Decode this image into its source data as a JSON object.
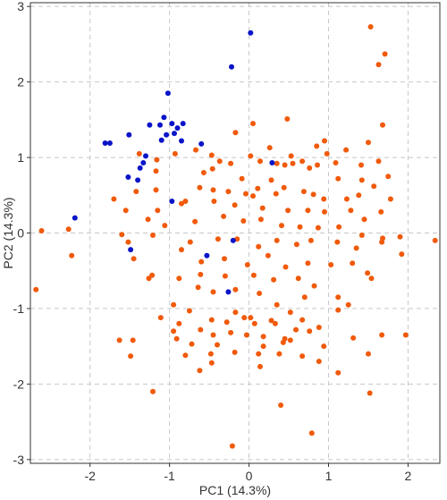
{
  "chart_data": {
    "type": "scatter",
    "title": "",
    "xlabel": "PC1 (14.3%)",
    "ylabel": "PC2 (14.3%)",
    "xlim": [
      -2.75,
      2.4
    ],
    "ylim": [
      -3.05,
      3.05
    ],
    "xticks": [
      -2,
      -1,
      0,
      1,
      2
    ],
    "yticks": [
      -3,
      -2,
      -1,
      0,
      1,
      2,
      3
    ],
    "grid": true,
    "legend": "none",
    "series": [
      {
        "color": "#0a14c8",
        "points": [
          [
            0.02,
            2.65
          ],
          [
            -0.22,
            2.2
          ],
          [
            -1.02,
            1.85
          ],
          [
            -1.07,
            1.53
          ],
          [
            -1.12,
            1.43
          ],
          [
            -0.97,
            1.45
          ],
          [
            -0.9,
            1.39
          ],
          [
            -0.83,
            1.45
          ],
          [
            -0.94,
            1.32
          ],
          [
            -1.25,
            1.43
          ],
          [
            -1.51,
            1.3
          ],
          [
            -1.75,
            1.19
          ],
          [
            -1.81,
            1.19
          ],
          [
            -1.1,
            1.23
          ],
          [
            -0.85,
            1.22
          ],
          [
            -0.6,
            1.18
          ],
          [
            -1.04,
            1.3
          ],
          [
            -1.3,
            1.02
          ],
          [
            -1.33,
            0.93
          ],
          [
            -1.37,
            0.86
          ],
          [
            -1.52,
            0.74
          ],
          [
            -1.4,
            0.7
          ],
          [
            -0.97,
            0.42
          ],
          [
            -2.19,
            0.2
          ],
          [
            -1.49,
            -0.22
          ],
          [
            0.29,
            0.93
          ],
          [
            -0.2,
            -0.1
          ],
          [
            -0.53,
            -0.3
          ],
          [
            -0.26,
            -0.78
          ]
        ]
      },
      {
        "color": "#f05a0a",
        "points": [
          [
            1.53,
            2.73
          ],
          [
            1.63,
            2.23
          ],
          [
            1.71,
            2.37
          ],
          [
            1.68,
            1.43
          ],
          [
            0.48,
            1.51
          ],
          [
            0.05,
            1.45
          ],
          [
            0.95,
            1.22
          ],
          [
            -0.17,
            1.33
          ],
          [
            0.26,
            1.13
          ],
          [
            0.53,
            1.02
          ],
          [
            0.85,
            1.15
          ],
          [
            0.98,
            1.05
          ],
          [
            1.22,
            1.1
          ],
          [
            1.5,
            1.2
          ],
          [
            0.02,
            1.02
          ],
          [
            -0.47,
            1.03
          ],
          [
            -0.67,
            1.1
          ],
          [
            -0.93,
            1.05
          ],
          [
            -1.16,
            0.97
          ],
          [
            -1.38,
            1.05
          ],
          [
            -1.17,
            0.82
          ],
          [
            -0.37,
            0.95
          ],
          [
            -0.23,
            0.92
          ],
          [
            -0.46,
            0.85
          ],
          [
            -0.57,
            0.8
          ],
          [
            0.14,
            0.95
          ],
          [
            0.35,
            0.92
          ],
          [
            0.45,
            0.9
          ],
          [
            0.55,
            0.92
          ],
          [
            0.67,
            0.95
          ],
          [
            0.76,
            0.86
          ],
          [
            0.86,
            0.9
          ],
          [
            1.09,
            0.93
          ],
          [
            1.41,
            0.9
          ],
          [
            1.63,
            0.95
          ],
          [
            1.75,
            0.75
          ],
          [
            1.12,
            0.72
          ],
          [
            1.42,
            0.7
          ],
          [
            1.57,
            0.62
          ],
          [
            1.38,
            0.5
          ],
          [
            1.78,
            0.45
          ],
          [
            1.23,
            0.45
          ],
          [
            0.81,
            0.51
          ],
          [
            0.94,
            0.45
          ],
          [
            0.69,
            0.55
          ],
          [
            0.44,
            0.6
          ],
          [
            0.28,
            0.7
          ],
          [
            0.11,
            0.59
          ],
          [
            -0.09,
            0.72
          ],
          [
            0.34,
            0.52
          ],
          [
            0.05,
            0.49
          ],
          [
            -0.04,
            0.52
          ],
          [
            -0.26,
            0.55
          ],
          [
            -0.45,
            0.57
          ],
          [
            -0.62,
            0.6
          ],
          [
            -0.8,
            0.42
          ],
          [
            -1.17,
            0.57
          ],
          [
            -1.42,
            0.55
          ],
          [
            -1.55,
            0.3
          ],
          [
            -1.7,
            0.45
          ],
          [
            -1.15,
            0.3
          ],
          [
            -0.85,
            0.39
          ],
          [
            -0.44,
            0.42
          ],
          [
            -0.18,
            0.37
          ],
          [
            0.17,
            0.33
          ],
          [
            0.49,
            0.3
          ],
          [
            0.74,
            0.3
          ],
          [
            0.95,
            0.28
          ],
          [
            1.28,
            0.3
          ],
          [
            1.45,
            0.18
          ],
          [
            1.66,
            0.28
          ],
          [
            -1.27,
            0.18
          ],
          [
            -1.06,
            0.1
          ],
          [
            -0.68,
            0.15
          ],
          [
            -0.32,
            0.22
          ],
          [
            -0.07,
            0.16
          ],
          [
            0.15,
            0.18
          ],
          [
            0.41,
            0.1
          ],
          [
            0.64,
            0.08
          ],
          [
            0.87,
            0.07
          ],
          [
            1.13,
            0.08
          ],
          [
            1.42,
            -0.03
          ],
          [
            1.68,
            -0.07
          ],
          [
            1.9,
            -0.05
          ],
          [
            2.34,
            -0.1
          ],
          [
            -1.6,
            -0.02
          ],
          [
            -1.52,
            -0.12
          ],
          [
            -1.21,
            -0.03
          ],
          [
            -0.74,
            -0.12
          ],
          [
            -0.39,
            -0.08
          ],
          [
            -0.15,
            -0.08
          ],
          [
            0.12,
            -0.18
          ],
          [
            0.35,
            -0.1
          ],
          [
            0.6,
            -0.15
          ],
          [
            0.78,
            -0.1
          ],
          [
            1.11,
            -0.12
          ],
          [
            1.35,
            -0.2
          ],
          [
            1.67,
            -0.12
          ],
          [
            1.92,
            -0.28
          ],
          [
            -2.61,
            0.03
          ],
          [
            -2.27,
            0.05
          ],
          [
            -2.23,
            -0.3
          ],
          [
            -1.45,
            -0.34
          ],
          [
            -1.26,
            -0.6
          ],
          [
            -0.85,
            -0.22
          ],
          [
            -0.6,
            -0.38
          ],
          [
            -0.31,
            -0.34
          ],
          [
            -0.02,
            -0.42
          ],
          [
            0.24,
            -0.3
          ],
          [
            0.46,
            -0.45
          ],
          [
            0.74,
            -0.4
          ],
          [
            1.03,
            -0.42
          ],
          [
            1.3,
            -0.4
          ],
          [
            1.49,
            -0.53
          ],
          [
            1.54,
            -0.6
          ],
          [
            -1.22,
            -0.56
          ],
          [
            -0.88,
            -0.6
          ],
          [
            -0.61,
            -0.55
          ],
          [
            -0.3,
            -0.57
          ],
          [
            0.06,
            -0.56
          ],
          [
            0.31,
            -0.62
          ],
          [
            0.62,
            -0.6
          ],
          [
            0.82,
            -0.7
          ],
          [
            -2.68,
            -0.75
          ],
          [
            -0.64,
            -0.72
          ],
          [
            -0.45,
            -0.78
          ],
          [
            -0.17,
            -0.75
          ],
          [
            0.13,
            -0.8
          ],
          [
            0.35,
            -0.95
          ],
          [
            0.7,
            -0.85
          ],
          [
            1.12,
            -0.85
          ],
          [
            1.25,
            -0.95
          ],
          [
            -0.95,
            -0.95
          ],
          [
            -0.75,
            -1.03
          ],
          [
            -0.17,
            -1.05
          ],
          [
            -0.06,
            -1.12
          ],
          [
            0.02,
            -1.12
          ],
          [
            0.28,
            -1.16
          ],
          [
            0.52,
            -1.05
          ],
          [
            0.67,
            -1.15
          ],
          [
            1.12,
            -1.02
          ],
          [
            -1.11,
            -1.12
          ],
          [
            -0.88,
            -1.2
          ],
          [
            -0.47,
            -1.15
          ],
          [
            -0.28,
            -1.18
          ],
          [
            0.07,
            -1.2
          ],
          [
            0.33,
            -1.2
          ],
          [
            0.59,
            -1.28
          ],
          [
            0.88,
            -1.25
          ],
          [
            -0.95,
            -1.3
          ],
          [
            -0.61,
            -1.28
          ],
          [
            -0.45,
            -1.35
          ],
          [
            -0.23,
            -1.32
          ],
          [
            -0.03,
            -1.35
          ],
          [
            0.18,
            -1.37
          ],
          [
            0.45,
            -1.4
          ],
          [
            0.76,
            -1.3
          ],
          [
            1.31,
            -1.39
          ],
          [
            1.67,
            -1.35
          ],
          [
            -1.63,
            -1.42
          ],
          [
            -1.46,
            -1.42
          ],
          [
            -0.91,
            -1.4
          ],
          [
            -0.72,
            -1.47
          ],
          [
            -0.4,
            -1.48
          ],
          [
            0.18,
            -1.5
          ],
          [
            0.43,
            -1.45
          ],
          [
            0.52,
            -1.42
          ],
          [
            0.94,
            -1.5
          ],
          [
            1.97,
            -1.35
          ],
          [
            -1.49,
            -1.63
          ],
          [
            -0.8,
            -1.62
          ],
          [
            -0.48,
            -1.6
          ],
          [
            -0.18,
            -1.58
          ],
          [
            0.12,
            -1.6
          ],
          [
            0.38,
            -1.6
          ],
          [
            0.67,
            -1.63
          ],
          [
            1.5,
            -1.6
          ],
          [
            -0.47,
            -1.72
          ],
          [
            0.14,
            -1.77
          ],
          [
            0.88,
            -1.7
          ],
          [
            -0.62,
            -1.82
          ],
          [
            1.12,
            -1.85
          ],
          [
            -1.21,
            -2.1
          ],
          [
            1.52,
            -2.12
          ],
          [
            0.4,
            -2.28
          ],
          [
            0.79,
            -2.65
          ],
          [
            -0.21,
            -2.82
          ]
        ]
      }
    ]
  }
}
